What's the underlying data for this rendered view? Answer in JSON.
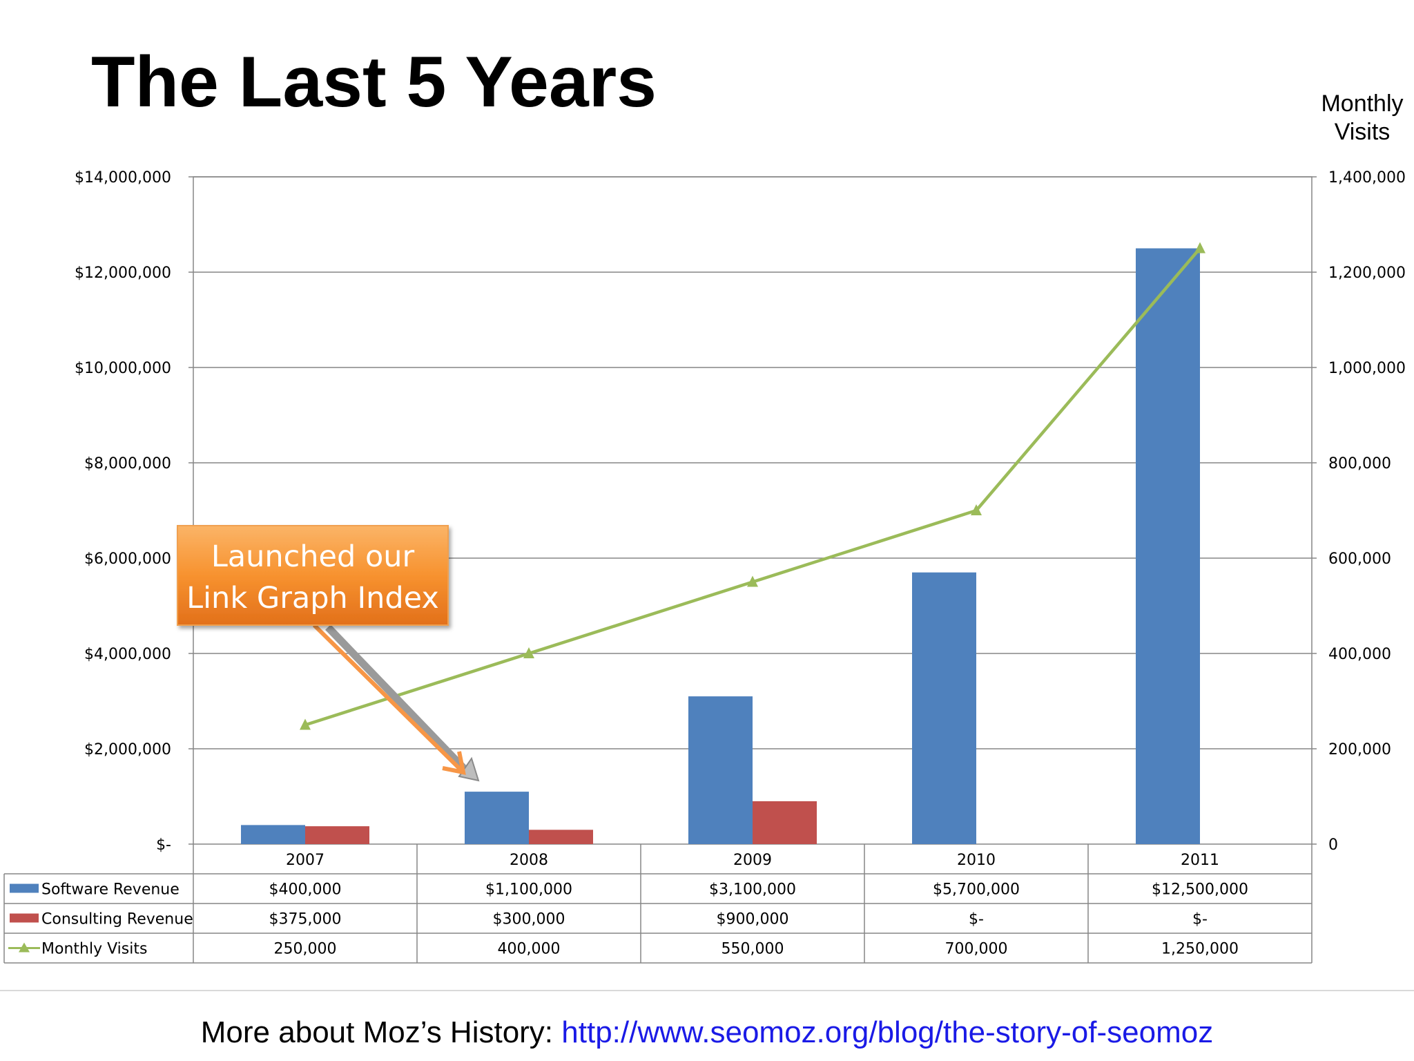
{
  "slide": {
    "title": "The Last 5 Years",
    "footer_label": "More about Moz’s History:",
    "footer_link": "http://www.seomoz.org/blog/the-story-of-seomoz"
  },
  "chart_data": {
    "type": "bar",
    "title": "",
    "categories": [
      "2007",
      "2008",
      "2009",
      "2010",
      "2011"
    ],
    "series": [
      {
        "name": "Software Revenue",
        "type": "bar",
        "axis": "left",
        "color": "#4f81bd",
        "values": [
          400000,
          1100000,
          3100000,
          5700000,
          12500000
        ],
        "labels": [
          "$400,000",
          "$1,100,000",
          "$3,100,000",
          "$5,700,000",
          "$12,500,000"
        ]
      },
      {
        "name": "Consulting Revenue",
        "type": "bar",
        "axis": "left",
        "color": "#c0504d",
        "values": [
          375000,
          300000,
          900000,
          0,
          0
        ],
        "labels": [
          "$375,000",
          "$300,000",
          "$900,000",
          "$-",
          "$-"
        ]
      },
      {
        "name": "Monthly Visits",
        "type": "line",
        "marker": "triangle",
        "axis": "right",
        "color": "#9bbb59",
        "values": [
          250000,
          400000,
          550000,
          700000,
          1250000
        ],
        "labels": [
          "250,000",
          "400,000",
          "550,000",
          "700,000",
          "1,250,000"
        ]
      }
    ],
    "y_left": {
      "ylim": [
        0,
        14000000
      ],
      "ticks": [
        0,
        2000000,
        4000000,
        6000000,
        8000000,
        10000000,
        12000000,
        14000000
      ],
      "tick_labels": [
        "$-",
        "$2,000,000",
        "$4,000,000",
        "$6,000,000",
        "$8,000,000",
        "$10,000,000",
        "$12,000,000",
        "$14,000,000"
      ]
    },
    "y_right": {
      "label": "Monthly Visits",
      "ylim": [
        0,
        1400000
      ],
      "ticks": [
        0,
        200000,
        400000,
        600000,
        800000,
        1000000,
        1200000,
        1400000
      ],
      "tick_labels": [
        "0",
        "200,000",
        "400,000",
        "600,000",
        "800,000",
        "1,000,000",
        "1,200,000",
        "1,400,000"
      ]
    },
    "grid": true,
    "legend": "data table below chart",
    "annotation": {
      "text_lines": [
        "Launched our",
        "Link Graph Index"
      ],
      "points_to": "2008",
      "color": "#f79646"
    }
  }
}
